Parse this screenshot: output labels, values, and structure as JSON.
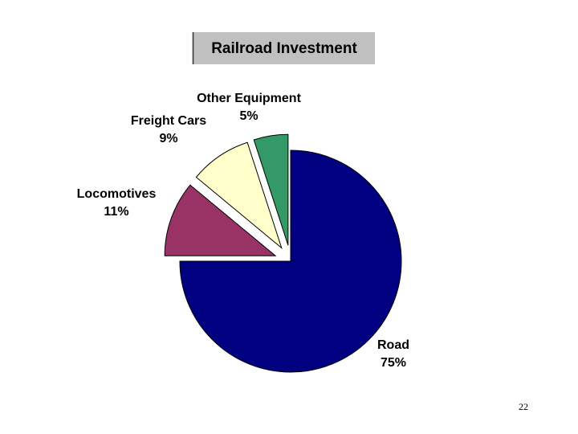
{
  "chart_data": {
    "type": "pie",
    "title": "Railroad Investment",
    "categories": [
      "Road",
      "Locomotives",
      "Freight Cars",
      "Other Equipment"
    ],
    "values": [
      75,
      11,
      9,
      5
    ],
    "value_labels": [
      "75%",
      "11%",
      "9%",
      "5%"
    ],
    "colors": [
      "#000080",
      "#993366",
      "#ffffcc",
      "#339966"
    ]
  },
  "page_number": "22"
}
